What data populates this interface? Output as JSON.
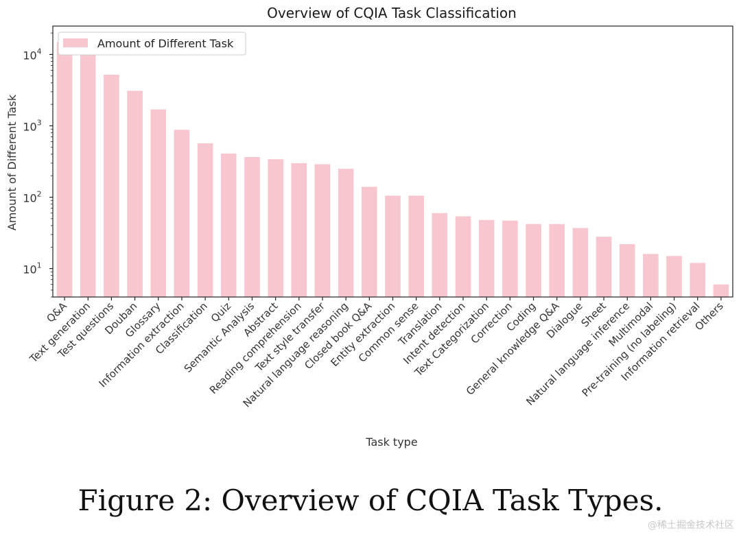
{
  "chart_data": {
    "type": "bar",
    "title": "Overview of CQIA Task Classification",
    "xlabel": "Task type",
    "ylabel": "Amount of Different Task",
    "yscale": "log",
    "ylim": [
      4,
      25000
    ],
    "yticks": [
      {
        "value": 10,
        "label": "10",
        "exp": "1"
      },
      {
        "value": 100,
        "label": "10",
        "exp": "2"
      },
      {
        "value": 1000,
        "label": "10",
        "exp": "3"
      },
      {
        "value": 10000,
        "label": "10",
        "exp": "4"
      }
    ],
    "legend": {
      "position": "top-left",
      "entries": [
        "Amount of Different Task"
      ]
    },
    "bar_color": "#f7c6ce",
    "ylabel_color": "#f5c3cc",
    "grid": false,
    "categories": [
      "Q&A",
      "Text generation",
      "Test questions",
      "Douban",
      "Glossary",
      "Information extraction",
      "Classification",
      "Quiz",
      "Semantic Analysis",
      "Abstract",
      "Reading comprehension",
      "Text style transfer",
      "Natural language reasoning",
      "Closed book Q&A",
      "Entity extraction",
      "Common sense",
      "Translation",
      "Intent detection",
      "Text Categorization",
      "Correction",
      "Coding",
      "General knowledge Q&A",
      "Dialogue",
      "Sheet",
      "Natural language inference",
      "Multimodal",
      "Pre-training (no labeling)",
      "Information retrieval",
      "Others"
    ],
    "series": [
      {
        "name": "Amount of Different Task",
        "values": [
          15000,
          14500,
          5200,
          3100,
          1700,
          880,
          570,
          410,
          365,
          340,
          300,
          290,
          250,
          140,
          105,
          105,
          60,
          54,
          48,
          47,
          42,
          42,
          37,
          28,
          22,
          16,
          15,
          12,
          6
        ]
      }
    ]
  },
  "caption": "Figure 2: Overview of CQIA Task Types.",
  "watermark": "@稀土掘金技术社区"
}
